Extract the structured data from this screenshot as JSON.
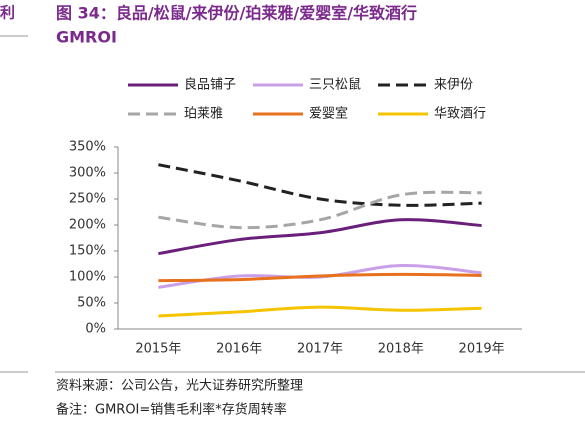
{
  "side_fragment": "利",
  "chart_data": {
    "type": "line",
    "title": "图 34：良品/松鼠/来伊份/珀莱雅/爱婴室/华致酒行",
    "subtitle": "GMROI",
    "categories": [
      "2015年",
      "2016年",
      "2017年",
      "2018年",
      "2019年"
    ],
    "series": [
      {
        "name": "良品铺子",
        "color": "#6a1f7a",
        "dash": "solid",
        "values": [
          145,
          172,
          185,
          210,
          199
        ]
      },
      {
        "name": "三只松鼠",
        "color": "#c9a0e8",
        "dash": "solid",
        "values": [
          80,
          102,
          100,
          122,
          108
        ]
      },
      {
        "name": "来伊份",
        "color": "#222222",
        "dash": "dashed",
        "values": [
          316,
          285,
          250,
          238,
          242
        ]
      },
      {
        "name": "珀莱雅",
        "color": "#a6a6a6",
        "dash": "dashed",
        "values": [
          215,
          195,
          210,
          258,
          262
        ]
      },
      {
        "name": "爱婴室",
        "color": "#e8711d",
        "dash": "solid",
        "values": [
          93,
          95,
          102,
          105,
          103
        ]
      },
      {
        "name": "华致酒行",
        "color": "#f5c400",
        "dash": "solid",
        "values": [
          25,
          33,
          42,
          36,
          40
        ]
      }
    ],
    "ylim": [
      0,
      350
    ],
    "yticks": [
      {
        "value": 0,
        "label": "0%"
      },
      {
        "value": 50,
        "label": "50%"
      },
      {
        "value": 100,
        "label": "100%"
      },
      {
        "value": 150,
        "label": "150%"
      },
      {
        "value": 200,
        "label": "200%"
      },
      {
        "value": 250,
        "label": "250%"
      },
      {
        "value": 300,
        "label": "300%"
      },
      {
        "value": 350,
        "label": "350%"
      }
    ],
    "source": "资料来源：公司公告，光大证券研究所整理",
    "note": "备注：GMROI=销售毛利率*存货周转率"
  }
}
